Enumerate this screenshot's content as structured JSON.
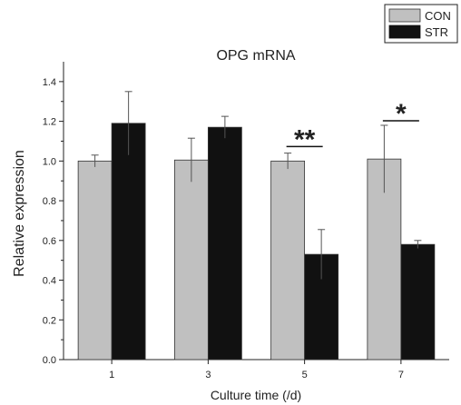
{
  "chart_data": {
    "type": "bar",
    "title": "OPG mRNA",
    "xlabel": "Culture time (/d)",
    "ylabel": "Relative expression",
    "categories": [
      "1",
      "3",
      "5",
      "7"
    ],
    "ylim": [
      0,
      1.5
    ],
    "yticks": [
      "0.0",
      "0.2",
      "0.4",
      "0.6",
      "0.8",
      "1.0",
      "1.2",
      "1.4"
    ],
    "series": [
      {
        "name": "CON",
        "color": "#c0c0c0",
        "values": [
          1.0,
          1.005,
          1.0,
          1.01
        ],
        "errors": [
          0.03,
          0.11,
          0.04,
          0.17
        ]
      },
      {
        "name": "STR",
        "color": "#111111",
        "values": [
          1.19,
          1.17,
          0.53,
          0.58
        ],
        "errors": [
          0.16,
          0.055,
          0.125,
          0.02
        ]
      }
    ],
    "annotations": [
      {
        "category": "5",
        "text": "**"
      },
      {
        "category": "7",
        "text": "*"
      }
    ],
    "legend_position": "top-right",
    "grid": false
  }
}
